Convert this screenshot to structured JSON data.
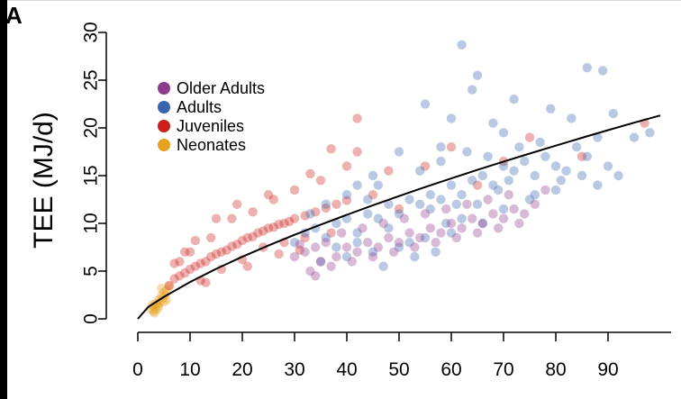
{
  "panel_label": "A",
  "colors": {
    "older_adults": "#8e3a8c",
    "adults": "#3a64b0",
    "juveniles": "#cc1f1a",
    "neonates": "#e8a020",
    "fit_line": "#000000"
  },
  "chart_data": {
    "type": "scatter",
    "title": "",
    "xlabel": "",
    "ylabel": "TEE (MJ/d)",
    "xlim": [
      0,
      100
    ],
    "ylim": [
      0,
      30
    ],
    "x_ticks": [
      0,
      10,
      20,
      30,
      40,
      50,
      60,
      70,
      80,
      90
    ],
    "y_ticks": [
      0,
      5,
      10,
      15,
      20,
      25,
      30
    ],
    "legend_position": "top-left",
    "legend": [
      {
        "name": "Older Adults",
        "color": "#8e3a8c"
      },
      {
        "name": "Adults",
        "color": "#3a64b0"
      },
      {
        "name": "Juveniles",
        "color": "#cc1f1a"
      },
      {
        "name": "Neonates",
        "color": "#e8a020"
      }
    ],
    "series": [
      {
        "name": "Neonates",
        "color": "#e8a020",
        "points": [
          [
            2.5,
            1.0
          ],
          [
            3,
            1.3
          ],
          [
            3,
            0.8
          ],
          [
            3.5,
            1.6
          ],
          [
            4,
            2.0
          ],
          [
            4,
            1.2
          ],
          [
            4.5,
            2.4
          ],
          [
            5,
            2.8
          ],
          [
            5,
            1.8
          ],
          [
            5.5,
            3.0
          ],
          [
            3.5,
            1.0
          ],
          [
            2.8,
            1.5
          ],
          [
            4.2,
            1.7
          ],
          [
            4.8,
            2.2
          ],
          [
            5.2,
            2.5
          ],
          [
            3.8,
            1.4
          ],
          [
            4.5,
            3.2
          ],
          [
            5.5,
            2.0
          ],
          [
            6,
            3.4
          ],
          [
            3.2,
            0.6
          ]
        ]
      },
      {
        "name": "Juveniles",
        "color": "#cc1f1a",
        "points": [
          [
            6,
            3.5
          ],
          [
            7,
            4.2
          ],
          [
            8,
            4.5
          ],
          [
            9,
            4.8
          ],
          [
            10,
            5.2
          ],
          [
            11,
            5.5
          ],
          [
            12,
            5.8
          ],
          [
            13,
            6.0
          ],
          [
            14,
            6.5
          ],
          [
            15,
            6.8
          ],
          [
            16,
            7.0
          ],
          [
            17,
            7.2
          ],
          [
            18,
            7.6
          ],
          [
            19,
            7.8
          ],
          [
            20,
            8.2
          ],
          [
            21,
            8.5
          ],
          [
            22,
            8.6
          ],
          [
            23,
            9.0
          ],
          [
            24,
            9.2
          ],
          [
            25,
            9.5
          ],
          [
            26,
            9.6
          ],
          [
            27,
            9.9
          ],
          [
            28,
            10.0
          ],
          [
            29,
            10.2
          ],
          [
            30,
            10.5
          ],
          [
            32,
            10.8
          ],
          [
            34,
            11.2
          ],
          [
            36,
            11.6
          ],
          [
            38,
            12.0
          ],
          [
            40,
            12.4
          ],
          [
            8,
            6.0
          ],
          [
            10,
            7.0
          ],
          [
            12,
            4.0
          ],
          [
            14,
            8.5
          ],
          [
            16,
            5.2
          ],
          [
            18,
            10.5
          ],
          [
            20,
            6.2
          ],
          [
            22,
            11.2
          ],
          [
            24,
            7.5
          ],
          [
            26,
            12.5
          ],
          [
            28,
            8.0
          ],
          [
            30,
            13.5
          ],
          [
            32,
            8.5
          ],
          [
            35,
            14.5
          ],
          [
            37,
            9.0
          ],
          [
            40,
            16.0
          ],
          [
            42,
            17.5
          ],
          [
            45,
            13.0
          ],
          [
            48,
            15.5
          ],
          [
            50,
            11.5
          ],
          [
            55,
            16.0
          ],
          [
            60,
            18.0
          ],
          [
            65,
            14.0
          ],
          [
            42,
            21.0
          ],
          [
            37,
            17.8
          ],
          [
            33,
            15.2
          ],
          [
            25,
            13.0
          ],
          [
            19,
            12.0
          ],
          [
            15,
            10.5
          ],
          [
            11,
            8.2
          ],
          [
            9,
            7.0
          ],
          [
            7,
            5.8
          ],
          [
            13,
            3.8
          ],
          [
            21,
            5.5
          ],
          [
            27,
            6.8
          ],
          [
            31,
            7.2
          ],
          [
            97,
            20.5
          ],
          [
            85,
            17.0
          ],
          [
            70,
            16.5
          ],
          [
            75,
            19.0
          ]
        ]
      },
      {
        "name": "Adults",
        "color": "#3a64b0",
        "points": [
          [
            30,
            8.0
          ],
          [
            32,
            9.0
          ],
          [
            34,
            9.5
          ],
          [
            36,
            8.5
          ],
          [
            38,
            10.0
          ],
          [
            40,
            10.5
          ],
          [
            42,
            9.0
          ],
          [
            44,
            11.0
          ],
          [
            46,
            10.5
          ],
          [
            48,
            12.0
          ],
          [
            50,
            11.0
          ],
          [
            52,
            12.5
          ],
          [
            54,
            12.0
          ],
          [
            56,
            13.0
          ],
          [
            58,
            12.5
          ],
          [
            60,
            14.0
          ],
          [
            62,
            13.0
          ],
          [
            64,
            14.5
          ],
          [
            66,
            15.0
          ],
          [
            68,
            14.0
          ],
          [
            70,
            16.0
          ],
          [
            72,
            15.5
          ],
          [
            74,
            16.5
          ],
          [
            76,
            15.0
          ],
          [
            78,
            17.0
          ],
          [
            80,
            16.0
          ],
          [
            82,
            15.5
          ],
          [
            84,
            18.0
          ],
          [
            86,
            17.0
          ],
          [
            88,
            19.0
          ],
          [
            90,
            16.0
          ],
          [
            92,
            15.0
          ],
          [
            95,
            19.0
          ],
          [
            98,
            19.5
          ],
          [
            62,
            28.7
          ],
          [
            86,
            26.3
          ],
          [
            89,
            26.0
          ],
          [
            65,
            25.5
          ],
          [
            64,
            24.0
          ],
          [
            72,
            23.0
          ],
          [
            79,
            22.0
          ],
          [
            55,
            22.5
          ],
          [
            60,
            21.0
          ],
          [
            68,
            20.5
          ],
          [
            91,
            21.5
          ],
          [
            83,
            21.0
          ],
          [
            77,
            18.5
          ],
          [
            70,
            19.5
          ],
          [
            58,
            18.0
          ],
          [
            50,
            17.5
          ],
          [
            45,
            15.0
          ],
          [
            42,
            14.0
          ],
          [
            40,
            13.0
          ],
          [
            36,
            12.0
          ],
          [
            33,
            11.0
          ],
          [
            66,
            10.0
          ],
          [
            60,
            9.0
          ],
          [
            55,
            8.5
          ],
          [
            50,
            7.5
          ],
          [
            45,
            7.0
          ],
          [
            40,
            6.5
          ],
          [
            35,
            6.0
          ],
          [
            70,
            11.5
          ],
          [
            75,
            12.5
          ],
          [
            80,
            13.5
          ],
          [
            48,
            9.5
          ],
          [
            52,
            8.0
          ],
          [
            57,
            7.0
          ],
          [
            62,
            10.5
          ],
          [
            44,
            12.5
          ],
          [
            46,
            14.0
          ],
          [
            54,
            15.5
          ],
          [
            58,
            16.5
          ],
          [
            63,
            17.5
          ],
          [
            67,
            17.0
          ],
          [
            73,
            18.0
          ],
          [
            38,
            7.5
          ],
          [
            42,
            8.0
          ],
          [
            47,
            5.5
          ],
          [
            53,
            6.5
          ],
          [
            56,
            11.5
          ],
          [
            59,
            10.0
          ],
          [
            61,
            12.0
          ],
          [
            65,
            12.0
          ],
          [
            69,
            13.5
          ],
          [
            71,
            14.5
          ],
          [
            76,
            13.0
          ],
          [
            81,
            14.5
          ],
          [
            85,
            15.0
          ],
          [
            88,
            14.0
          ]
        ]
      },
      {
        "name": "Older Adults",
        "color": "#8e3a8c",
        "points": [
          [
            30,
            6.5
          ],
          [
            32,
            7.0
          ],
          [
            34,
            7.5
          ],
          [
            35,
            6.0
          ],
          [
            36,
            8.0
          ],
          [
            38,
            6.5
          ],
          [
            40,
            7.5
          ],
          [
            42,
            7.0
          ],
          [
            44,
            8.0
          ],
          [
            46,
            7.5
          ],
          [
            48,
            8.5
          ],
          [
            50,
            8.0
          ],
          [
            52,
            9.0
          ],
          [
            54,
            8.5
          ],
          [
            56,
            9.5
          ],
          [
            58,
            9.0
          ],
          [
            60,
            10.0
          ],
          [
            62,
            9.5
          ],
          [
            64,
            10.5
          ],
          [
            66,
            10.0
          ],
          [
            68,
            11.0
          ],
          [
            70,
            10.5
          ],
          [
            72,
            11.5
          ],
          [
            74,
            11.0
          ],
          [
            76,
            12.0
          ],
          [
            78,
            13.5
          ],
          [
            33,
            5.0
          ],
          [
            37,
            5.5
          ],
          [
            41,
            6.0
          ],
          [
            45,
            6.5
          ],
          [
            49,
            7.0
          ],
          [
            53,
            7.5
          ],
          [
            57,
            8.0
          ],
          [
            61,
            8.5
          ],
          [
            65,
            9.0
          ],
          [
            69,
            9.5
          ],
          [
            73,
            10.0
          ],
          [
            34,
            4.5
          ],
          [
            31,
            7.8
          ],
          [
            39,
            9.0
          ],
          [
            43,
            9.5
          ],
          [
            47,
            10.0
          ],
          [
            51,
            10.5
          ],
          [
            55,
            11.0
          ],
          [
            59,
            11.5
          ],
          [
            63,
            12.0
          ],
          [
            67,
            12.5
          ],
          [
            71,
            13.0
          ]
        ]
      }
    ],
    "fit_line": {
      "name": "fit",
      "x": [
        0,
        2,
        5,
        10,
        15,
        20,
        25,
        30,
        35,
        40,
        45,
        50,
        55,
        60,
        65,
        70,
        75,
        80,
        85,
        90,
        95,
        100
      ],
      "y": [
        0,
        1.25,
        2.3,
        3.86,
        5.24,
        6.5,
        7.68,
        8.8,
        9.87,
        10.9,
        11.9,
        12.86,
        13.8,
        14.71,
        15.6,
        16.47,
        17.31,
        18.14,
        18.96,
        19.76,
        20.55,
        21.3
      ]
    }
  }
}
